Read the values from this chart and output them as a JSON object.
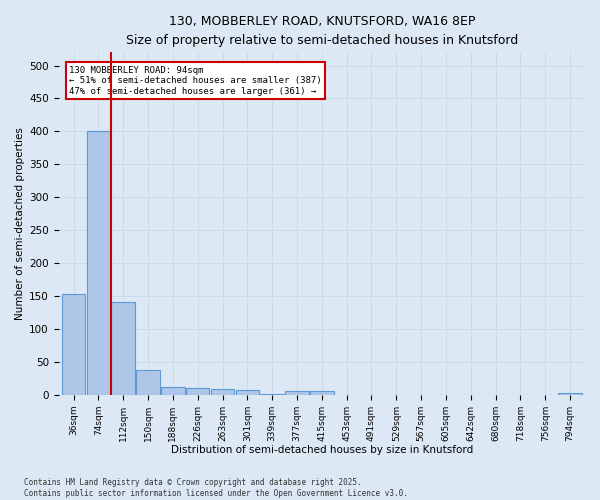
{
  "title_line1": "130, MOBBERLEY ROAD, KNUTSFORD, WA16 8EP",
  "title_line2": "Size of property relative to semi-detached houses in Knutsford",
  "xlabel": "Distribution of semi-detached houses by size in Knutsford",
  "ylabel": "Number of semi-detached properties",
  "categories": [
    "36sqm",
    "74sqm",
    "112sqm",
    "150sqm",
    "188sqm",
    "226sqm",
    "263sqm",
    "301sqm",
    "339sqm",
    "377sqm",
    "415sqm",
    "453sqm",
    "491sqm",
    "529sqm",
    "567sqm",
    "605sqm",
    "642sqm",
    "680sqm",
    "718sqm",
    "756sqm",
    "794sqm"
  ],
  "values": [
    153,
    401,
    141,
    38,
    11,
    10,
    8,
    7,
    1,
    5,
    6,
    0,
    0,
    0,
    0,
    0,
    0,
    0,
    0,
    0,
    3
  ],
  "bar_color": "#aec6e8",
  "bar_edge_color": "#5b9bd5",
  "bar_edge_width": 0.8,
  "vline_x_bin": 1.5,
  "vline_color": "#cc0000",
  "annotation_text": "130 MOBBERLEY ROAD: 94sqm\n← 51% of semi-detached houses are smaller (387)\n47% of semi-detached houses are larger (361) →",
  "annotation_box_color": "#ffffff",
  "annotation_box_edge_color": "#cc0000",
  "annotation_fontsize": 6.5,
  "ylim": [
    0,
    520
  ],
  "yticks": [
    0,
    50,
    100,
    150,
    200,
    250,
    300,
    350,
    400,
    450,
    500
  ],
  "grid_color": "#c8d8e8",
  "background_color": "#dce9f5",
  "footer_text": "Contains HM Land Registry data © Crown copyright and database right 2025.\nContains public sector information licensed under the Open Government Licence v3.0.",
  "bin_width": 38
}
